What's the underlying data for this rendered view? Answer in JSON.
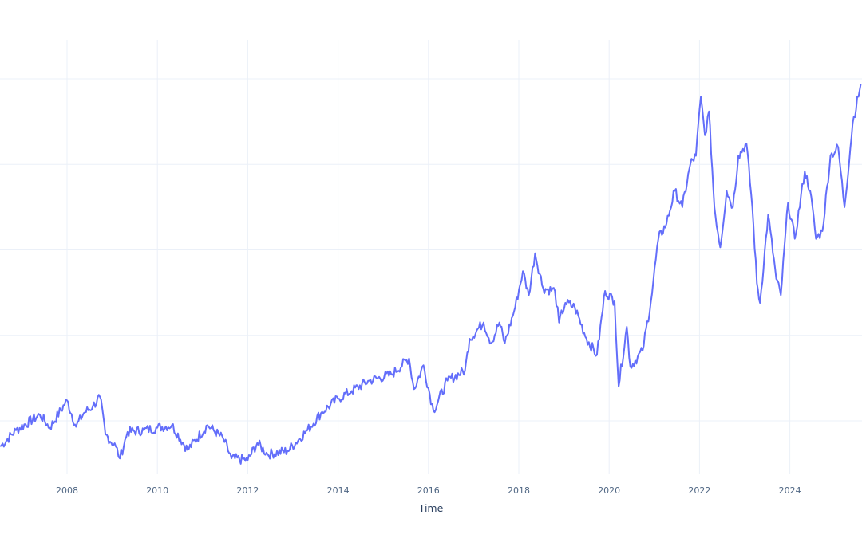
{
  "chart_data": {
    "type": "line",
    "title": "",
    "xlabel": "Time",
    "ylabel": "",
    "grid": true,
    "legend": "none",
    "line_color": "#636efa",
    "gridline_color": "#ebf0f8",
    "xtick_labels": [
      "2008",
      "2010",
      "2012",
      "2014",
      "2016",
      "2018",
      "2020",
      "2022",
      "2024"
    ],
    "xlim": [
      2006.52,
      2025.6
    ],
    "ytick_labels": [],
    "y_note": "Y-axis tick labels are not visible; values are relative gridline levels (gridline 1 = lowest visible, 5 = highest).",
    "ylim": [
      0.0,
      5.4
    ],
    "y_gridlines": [
      1,
      2,
      3,
      4,
      5
    ],
    "series": [
      {
        "name": "value",
        "x": [
          2006.52,
          2006.87,
          2007.4,
          2007.62,
          2008.0,
          2008.2,
          2008.37,
          2008.57,
          2008.73,
          2008.85,
          2009.08,
          2009.17,
          2009.34,
          2009.7,
          2010.0,
          2010.32,
          2010.67,
          2011.11,
          2011.46,
          2011.64,
          2012.0,
          2012.21,
          2012.44,
          2012.88,
          2013.32,
          2013.62,
          2014.0,
          2014.3,
          2014.69,
          2015.18,
          2015.57,
          2015.68,
          2015.89,
          2016.11,
          2016.42,
          2016.81,
          2016.91,
          2017.22,
          2017.39,
          2017.57,
          2017.69,
          2017.92,
          2018.09,
          2018.22,
          2018.36,
          2018.54,
          2018.8,
          2018.89,
          2019.03,
          2019.24,
          2019.5,
          2019.73,
          2019.91,
          2020.12,
          2020.21,
          2020.39,
          2020.47,
          2020.74,
          2020.92,
          2021.09,
          2021.27,
          2021.45,
          2021.62,
          2021.8,
          2021.92,
          2022.03,
          2022.12,
          2022.21,
          2022.33,
          2022.46,
          2022.6,
          2022.74,
          2022.86,
          2023.04,
          2023.17,
          2023.27,
          2023.34,
          2023.52,
          2023.7,
          2023.8,
          2023.96,
          2024.11,
          2024.33,
          2024.45,
          2024.58,
          2024.72,
          2024.9,
          2025.07,
          2025.21,
          2025.39,
          2025.57
        ],
        "values": [
          0.7,
          0.89,
          1.07,
          0.92,
          1.24,
          0.93,
          1.09,
          1.17,
          1.28,
          0.84,
          0.7,
          0.56,
          0.87,
          0.89,
          0.92,
          0.95,
          0.66,
          0.95,
          0.79,
          0.56,
          0.54,
          0.74,
          0.61,
          0.65,
          0.89,
          1.09,
          1.26,
          1.35,
          1.47,
          1.54,
          1.73,
          1.37,
          1.65,
          1.12,
          1.47,
          1.59,
          1.96,
          2.15,
          1.91,
          2.15,
          1.91,
          2.33,
          2.75,
          2.47,
          2.96,
          2.55,
          2.52,
          2.15,
          2.38,
          2.33,
          1.96,
          1.77,
          2.52,
          2.4,
          1.4,
          2.1,
          1.63,
          1.82,
          2.38,
          3.13,
          3.31,
          3.69,
          3.5,
          4.01,
          4.1,
          4.79,
          4.34,
          4.62,
          3.5,
          3.03,
          3.69,
          3.5,
          4.1,
          4.24,
          3.5,
          2.61,
          2.38,
          3.41,
          2.66,
          2.47,
          3.55,
          3.13,
          3.92,
          3.69,
          3.13,
          3.22,
          4.1,
          4.2,
          3.5,
          4.48,
          4.94
        ]
      }
    ]
  }
}
